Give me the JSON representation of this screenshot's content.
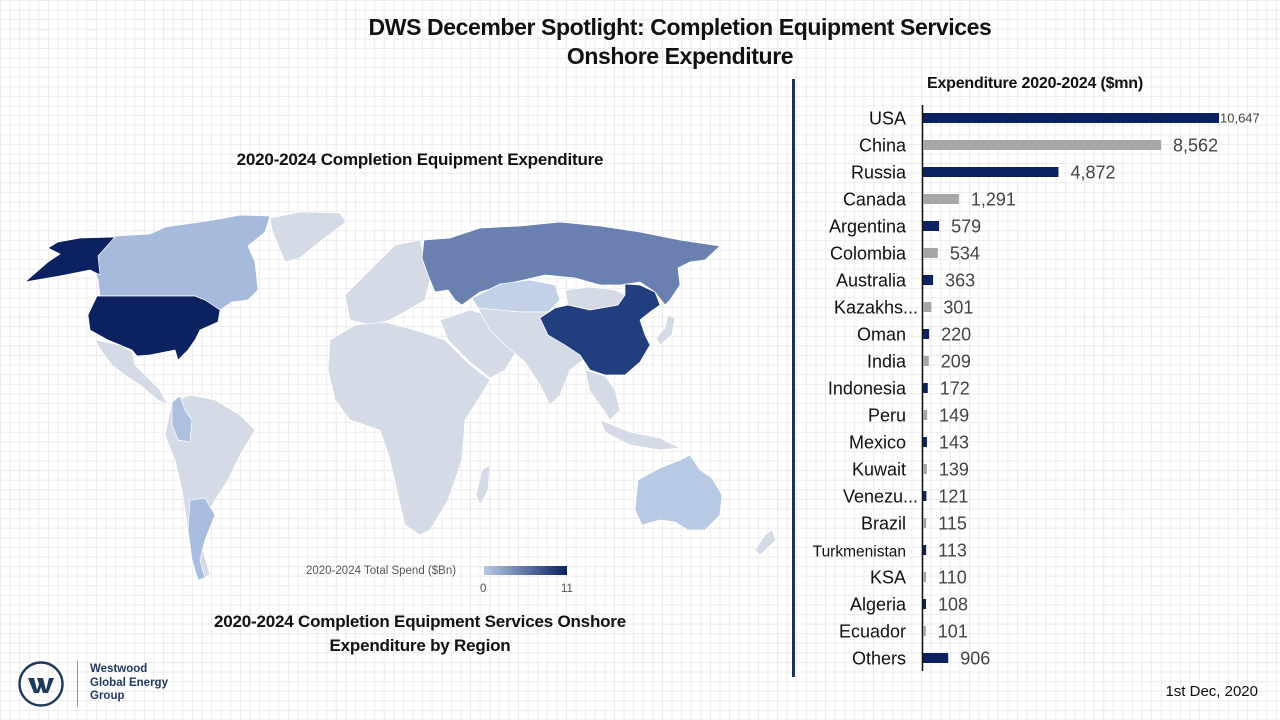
{
  "header": {
    "title_line1": "DWS December Spotlight: Completion Equipment Services",
    "title_line2": "Onshore Expenditure"
  },
  "map": {
    "title": "2020-2024 Completion Equipment Expenditure",
    "caption_line1": "2020-2024 Completion Equipment Services Onshore",
    "caption_line2": "Expenditure by Region",
    "legend": {
      "label": "2020-2024 Total Spend ($Bn)",
      "min": "0",
      "max": "11",
      "color_low": "#b7c9e6",
      "color_high": "#0a2160"
    },
    "region_colors": {
      "usa": "#0b2160",
      "china": "#213f7f",
      "russia": "#6a80b0",
      "canada": "#a6bbdc",
      "argentina": "#a9bde0",
      "colombia": "#adc0e2",
      "australia": "#b8c9e4",
      "kazakhstan": "#c3d1e8",
      "other": "#d4dbe7"
    }
  },
  "chart_data": {
    "type": "bar",
    "orientation": "horizontal",
    "title": "Expenditure 2020-2024 ($mn)",
    "xlabel": "",
    "ylabel": "",
    "xlim": [
      0,
      10647
    ],
    "grid": false,
    "categories": [
      "USA",
      "China",
      "Russia",
      "Canada",
      "Argentina",
      "Colombia",
      "Australia",
      "Kazakhs...",
      "Oman",
      "India",
      "Indonesia",
      "Peru",
      "Mexico",
      "Kuwait",
      "Venezu...",
      "Brazil",
      "Turkmenistan",
      "KSA",
      "Algeria",
      "Ecuador",
      "Others"
    ],
    "values": [
      10647,
      8562,
      4872,
      1291,
      579,
      534,
      363,
      301,
      220,
      209,
      172,
      149,
      143,
      139,
      121,
      115,
      113,
      110,
      108,
      101,
      906
    ],
    "value_labels": [
      "10,647",
      "8,562",
      "4,872",
      "1,291",
      "579",
      "534",
      "363",
      "301",
      "220",
      "209",
      "172",
      "149",
      "143",
      "139",
      "121",
      "115",
      "113",
      "110",
      "108",
      "101",
      "906"
    ],
    "colors": {
      "dark": "#0b2160",
      "grey": "#a6a6a6"
    }
  },
  "footer": {
    "company_line1": "Westwood",
    "company_line2": "Global Energy",
    "company_line3": "Group",
    "logo_letter": "W",
    "date": "1st Dec, 2020"
  }
}
